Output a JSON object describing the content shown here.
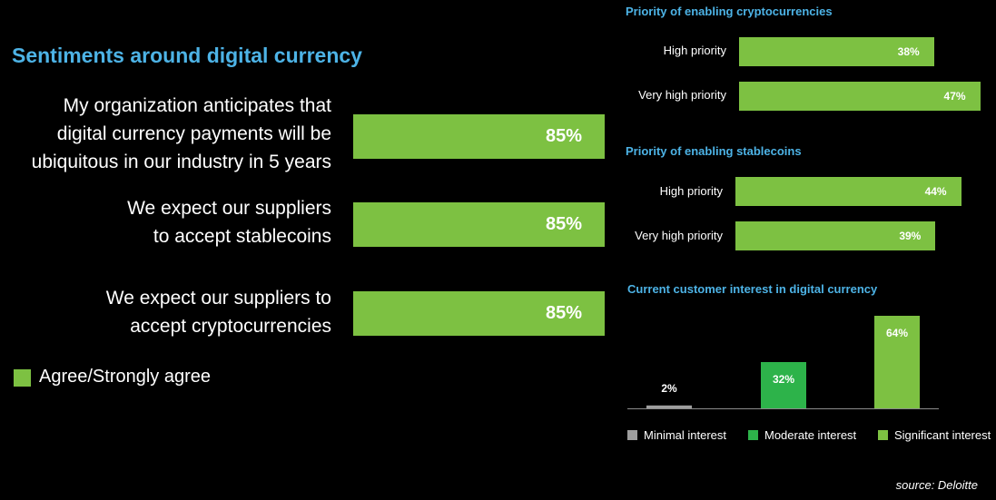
{
  "sentiments": {
    "title": "Sentiments around digital currency",
    "statements": [
      {
        "lines": [
          "My organization anticipates that",
          "digital currency payments will be",
          "ubiquitous in our industry in 5 years"
        ],
        "value_label": "85%"
      },
      {
        "lines": [
          "We expect our suppliers",
          "to accept stablecoins"
        ],
        "value_label": "85%"
      },
      {
        "lines": [
          "We expect our suppliers to",
          "accept cryptocurrencies"
        ],
        "value_label": "85%"
      }
    ],
    "legend": "Agree/Strongly agree"
  },
  "crypto_priority": {
    "title": "Priority of enabling cryptocurrencies",
    "bars": [
      {
        "label": "High priority",
        "value_label": "38%"
      },
      {
        "label": "Very high priority",
        "value_label": "47%"
      }
    ]
  },
  "stablecoin_priority": {
    "title": "Priority of enabling stablecoins",
    "bars": [
      {
        "label": "High priority",
        "value_label": "44%"
      },
      {
        "label": "Very high priority",
        "value_label": "39%"
      }
    ]
  },
  "customer_interest": {
    "title": "Current customer interest in digital currency",
    "legend": [
      {
        "label": "Minimal interest",
        "color": "#9e9e9e"
      },
      {
        "label": "Moderate interest",
        "color": "#2db34a"
      },
      {
        "label": "Significant interest",
        "color": "#7dc142"
      }
    ]
  },
  "source": "source: Deloitte",
  "colors": {
    "title_blue": "#4db3e6",
    "bar_green": "#7dc142",
    "moderate_green": "#2db34a",
    "minimal_gray": "#9e9e9e"
  },
  "chart_data": [
    {
      "type": "bar",
      "title": "Sentiments around digital currency",
      "orientation": "horizontal",
      "categories": [
        "My organization anticipates that digital currency payments will be ubiquitous in our industry in 5 years",
        "We expect our suppliers to accept stablecoins",
        "We expect our suppliers to accept cryptocurrencies"
      ],
      "series": [
        {
          "name": "Agree/Strongly agree",
          "values": [
            85,
            85,
            85
          ]
        }
      ],
      "unit": "%",
      "legend": "bottom-left"
    },
    {
      "type": "bar",
      "title": "Priority of enabling cryptocurrencies",
      "orientation": "horizontal",
      "categories": [
        "High priority",
        "Very high priority"
      ],
      "values": [
        38,
        47
      ],
      "unit": "%"
    },
    {
      "type": "bar",
      "title": "Priority of enabling stablecoins",
      "orientation": "horizontal",
      "categories": [
        "High priority",
        "Very high priority"
      ],
      "values": [
        44,
        39
      ],
      "unit": "%"
    },
    {
      "type": "bar",
      "title": "Current customer interest in digital currency",
      "orientation": "vertical",
      "categories": [
        "Minimal interest",
        "Moderate interest",
        "Significant interest"
      ],
      "values": [
        2,
        32,
        64
      ],
      "unit": "%",
      "legend": "bottom"
    }
  ]
}
